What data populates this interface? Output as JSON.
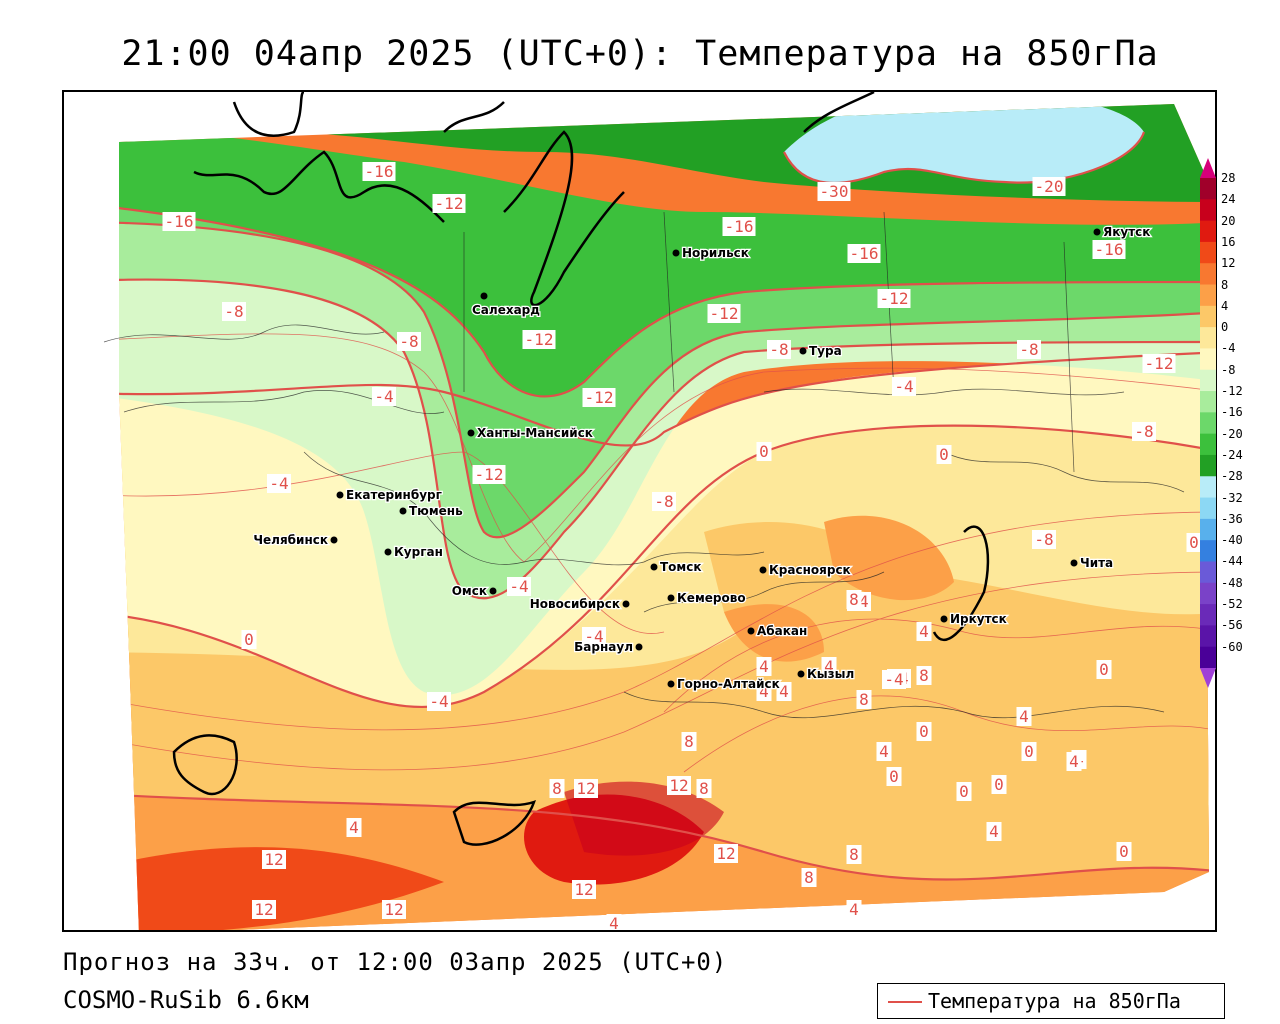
{
  "title": "21:00 04апр 2025 (UTC+0): Температура на 850гПа",
  "footer": {
    "forecast": "Прогноз на 33ч. от 12:00 03апр 2025 (UTC+0)",
    "model": "COSMO-RuSib 6.6км"
  },
  "legend": {
    "label": "Температура на 850гПа",
    "color": "#e0504a"
  },
  "colorbar": {
    "ticks": [
      "28",
      "24",
      "20",
      "16",
      "12",
      "8",
      "4",
      "0",
      "-4",
      "-8",
      "-12",
      "-16",
      "-20",
      "-24",
      "-28",
      "-32",
      "-36",
      "-40",
      "-44",
      "-48",
      "-52",
      "-56",
      "-60"
    ],
    "colors": [
      "#a0002a",
      "#c8001c",
      "#e01a10",
      "#f04a18",
      "#f87830",
      "#fca048",
      "#fcc868",
      "#fde89a",
      "#fff8c0",
      "#d8f8c8",
      "#a8ec9c",
      "#6cd86a",
      "#3cc03c",
      "#22a024",
      "#b8ecf8",
      "#8cd8f4",
      "#58b0ec",
      "#3480e0",
      "#6a5ad8",
      "#7a42c8",
      "#6a2ab8",
      "#5a14a8",
      "#4a0098"
    ]
  },
  "cities": [
    {
      "name": "Якутск"
    },
    {
      "name": "Норильск"
    },
    {
      "name": "Салехард"
    },
    {
      "name": "Тура"
    },
    {
      "name": "Ханты-Мансийск"
    },
    {
      "name": "Екатеринбург"
    },
    {
      "name": "Тюмень"
    },
    {
      "name": "Челябинск"
    },
    {
      "name": "Курган"
    },
    {
      "name": "Омск"
    },
    {
      "name": "Новосибирск"
    },
    {
      "name": "Томск"
    },
    {
      "name": "Кемерово"
    },
    {
      "name": "Красноярск"
    },
    {
      "name": "Барнаул"
    },
    {
      "name": "Абакан"
    },
    {
      "name": "Горно-Алтайск"
    },
    {
      "name": "Кызыл"
    },
    {
      "name": "Иркутск"
    },
    {
      "name": "Чита"
    }
  ],
  "isotherm_labels": [
    "-16",
    "-16",
    "-12",
    "-20",
    "-30",
    "-16",
    "-16",
    "-16",
    "-12",
    "-12",
    "-12",
    "-8",
    "-8",
    "-8",
    "-12",
    "-8",
    "-4",
    "-4",
    "-12",
    "-12",
    "-8",
    "-8",
    "-8",
    "-4",
    "0",
    "0",
    "-4",
    "0",
    "-4",
    "-4",
    "-4",
    "-4",
    "0",
    "4",
    "8",
    "4",
    "8",
    "4",
    "-4",
    "4",
    "0",
    "4",
    "8",
    "4",
    "0",
    "0",
    "4",
    "0",
    "0",
    "4",
    "4",
    "0",
    "8",
    "12",
    "12",
    "8",
    "12",
    "8",
    "12",
    "8",
    "12",
    "8",
    "4",
    "4",
    "12",
    "12",
    "4",
    "4",
    "4",
    "0"
  ]
}
